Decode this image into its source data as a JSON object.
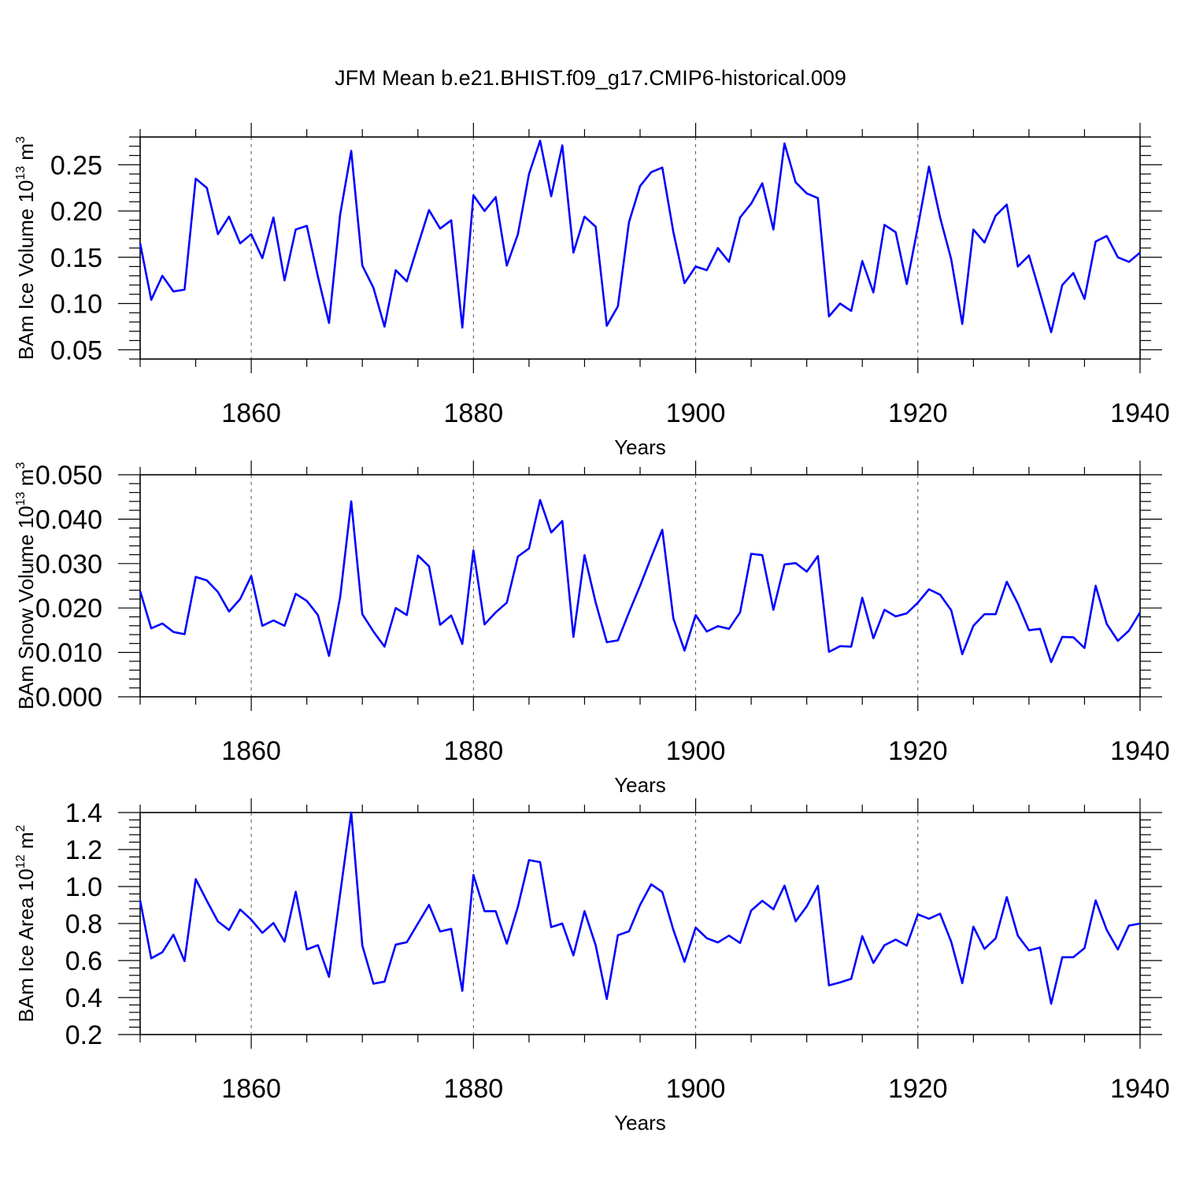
{
  "title": "JFM Mean b.e21.BHIST.f09_g17.CMIP6-historical.009",
  "colors": {
    "series": "#0000ff",
    "axis": "#000000",
    "grid": "#555555"
  },
  "chart_data": [
    {
      "type": "line",
      "xlabel": "Years",
      "ylabel_main": "BAm Ice Volume 10",
      "ylabel_exp": "13",
      "ylabel_unit": " m",
      "ylabel_unit_exp": "3",
      "xlim": [
        1850,
        1940
      ],
      "ylim": [
        0.04,
        0.28
      ],
      "yticks": [
        0.05,
        0.1,
        0.15,
        0.2,
        0.25
      ],
      "ytick_labels": [
        "0.05",
        "0.10",
        "0.15",
        "0.20",
        "0.25"
      ],
      "xticks": [
        1860,
        1880,
        1900,
        1920,
        1940
      ],
      "xtick_labels": [
        "1860",
        "1880",
        "1900",
        "1920",
        "1940"
      ],
      "grid": "vertical dashed at major x ticks",
      "x_start": 1850,
      "values": [
        0.165,
        0.104,
        0.13,
        0.113,
        0.115,
        0.235,
        0.225,
        0.175,
        0.194,
        0.165,
        0.175,
        0.149,
        0.193,
        0.125,
        0.18,
        0.184,
        0.129,
        0.079,
        0.196,
        0.265,
        0.141,
        0.117,
        0.075,
        0.136,
        0.124,
        0.163,
        0.201,
        0.181,
        0.19,
        0.074,
        0.217,
        0.2,
        0.215,
        0.141,
        0.175,
        0.24,
        0.276,
        0.216,
        0.271,
        0.155,
        0.194,
        0.183,
        0.076,
        0.097,
        0.188,
        0.227,
        0.242,
        0.247,
        0.177,
        0.122,
        0.14,
        0.136,
        0.16,
        0.145,
        0.193,
        0.208,
        0.23,
        0.18,
        0.273,
        0.231,
        0.219,
        0.214,
        0.086,
        0.1,
        0.092,
        0.146,
        0.112,
        0.185,
        0.177,
        0.121,
        0.183,
        0.248,
        0.193,
        0.148,
        0.078,
        0.18,
        0.166,
        0.195,
        0.207,
        0.14,
        0.152,
        0.111,
        0.069,
        0.12,
        0.133,
        0.105,
        0.167,
        0.173,
        0.15,
        0.145,
        0.155
      ]
    },
    {
      "type": "line",
      "xlabel": "Years",
      "ylabel_main": "BAm Snow Volume 10",
      "ylabel_exp": "13",
      "ylabel_unit": " m",
      "ylabel_unit_exp": "3",
      "xlim": [
        1850,
        1940
      ],
      "ylim": [
        0.0,
        0.05
      ],
      "yticks": [
        0.0,
        0.01,
        0.02,
        0.03,
        0.04,
        0.05
      ],
      "ytick_labels": [
        "0.000",
        "0.010",
        "0.020",
        "0.030",
        "0.040",
        "0.050"
      ],
      "xticks": [
        1860,
        1880,
        1900,
        1920,
        1940
      ],
      "xtick_labels": [
        "1860",
        "1880",
        "1900",
        "1920",
        "1940"
      ],
      "grid": "vertical dashed at major x ticks",
      "x_start": 1850,
      "values": [
        0.0238,
        0.0154,
        0.0165,
        0.0146,
        0.0141,
        0.027,
        0.0262,
        0.0236,
        0.0192,
        0.022,
        0.0272,
        0.016,
        0.0172,
        0.016,
        0.0232,
        0.0216,
        0.0184,
        0.0092,
        0.0224,
        0.044,
        0.0186,
        0.0147,
        0.0113,
        0.02,
        0.0184,
        0.0318,
        0.0294,
        0.0162,
        0.0183,
        0.0119,
        0.033,
        0.0163,
        0.019,
        0.0212,
        0.0316,
        0.0334,
        0.0443,
        0.037,
        0.0396,
        0.0135,
        0.0319,
        0.0212,
        0.0123,
        0.0127,
        0.019,
        0.025,
        0.0314,
        0.0376,
        0.0176,
        0.0104,
        0.0184,
        0.0147,
        0.0159,
        0.0153,
        0.019,
        0.0322,
        0.0319,
        0.0196,
        0.0298,
        0.0301,
        0.0282,
        0.0317,
        0.0101,
        0.0114,
        0.0113,
        0.0223,
        0.0132,
        0.0196,
        0.0181,
        0.0188,
        0.0212,
        0.0242,
        0.023,
        0.0195,
        0.0096,
        0.016,
        0.0186,
        0.0186,
        0.0259,
        0.021,
        0.015,
        0.0153,
        0.0078,
        0.0135,
        0.0134,
        0.011,
        0.025,
        0.0164,
        0.0126,
        0.0149,
        0.019
      ]
    },
    {
      "type": "line",
      "xlabel": "Years",
      "ylabel_main": "BAm Ice Area 10",
      "ylabel_exp": "12",
      "ylabel_unit": " m",
      "ylabel_unit_exp": "2",
      "xlim": [
        1850,
        1940
      ],
      "ylim": [
        0.2,
        1.4
      ],
      "yticks": [
        0.2,
        0.4,
        0.6,
        0.8,
        1.0,
        1.2,
        1.4
      ],
      "ytick_labels": [
        "0.2",
        "0.4",
        "0.6",
        "0.8",
        "1.0",
        "1.2",
        "1.4"
      ],
      "xticks": [
        1860,
        1880,
        1900,
        1920,
        1940
      ],
      "xtick_labels": [
        "1860",
        "1880",
        "1900",
        "1920",
        "1940"
      ],
      "grid": "vertical dashed at major x ticks",
      "x_start": 1850,
      "values": [
        0.925,
        0.612,
        0.645,
        0.74,
        0.597,
        1.04,
        0.923,
        0.811,
        0.765,
        0.876,
        0.821,
        0.75,
        0.803,
        0.702,
        0.972,
        0.66,
        0.683,
        0.512,
        0.96,
        1.4,
        0.681,
        0.475,
        0.486,
        0.686,
        0.699,
        0.8,
        0.901,
        0.757,
        0.771,
        0.436,
        1.063,
        0.867,
        0.867,
        0.691,
        0.891,
        1.143,
        1.132,
        0.781,
        0.8,
        0.628,
        0.867,
        0.682,
        0.392,
        0.737,
        0.758,
        0.901,
        1.012,
        0.97,
        0.765,
        0.593,
        0.778,
        0.721,
        0.698,
        0.735,
        0.695,
        0.87,
        0.923,
        0.877,
        1.005,
        0.812,
        0.893,
        1.004,
        0.466,
        0.482,
        0.501,
        0.732,
        0.587,
        0.683,
        0.713,
        0.681,
        0.85,
        0.826,
        0.853,
        0.702,
        0.478,
        0.783,
        0.663,
        0.72,
        0.943,
        0.734,
        0.655,
        0.67,
        0.367,
        0.618,
        0.618,
        0.667,
        0.925,
        0.765,
        0.66,
        0.789,
        0.8
      ]
    }
  ]
}
